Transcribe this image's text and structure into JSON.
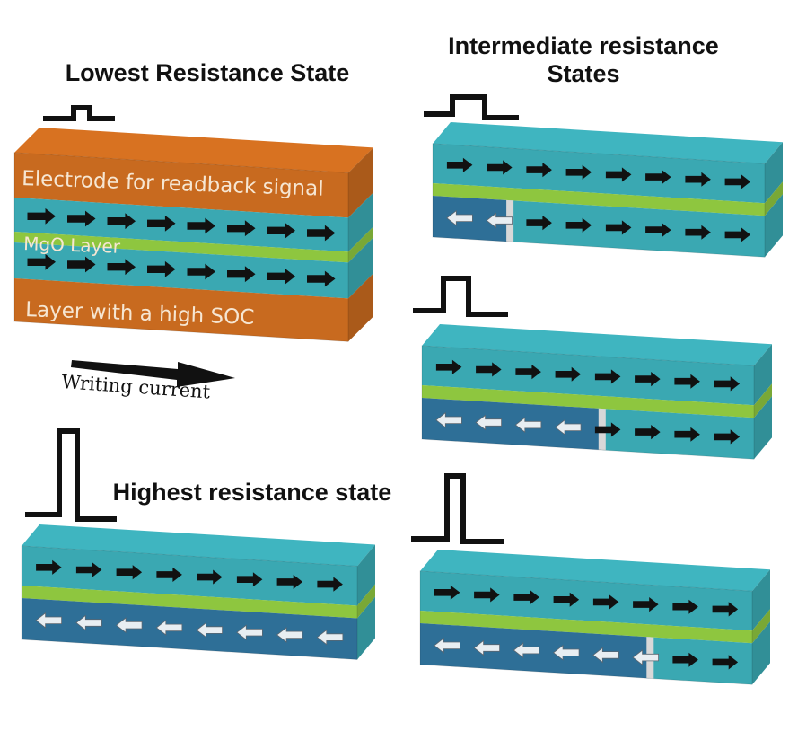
{
  "titles": {
    "lowest": "Lowest Resistance State",
    "intermediate_line1": "Intermediate resistance",
    "intermediate_line2": "States",
    "highest": "Highest resistance state"
  },
  "labels": {
    "electrode": "Electrode for readback signal",
    "mgo": "MgO Layer",
    "soc": "Layer with a high SOC",
    "writing_current": "Writing current"
  },
  "colors": {
    "orange": "#c86a1f",
    "teal": "#3aa8b2",
    "green": "#8ec63f",
    "dark_blue": "#2e6f97",
    "arrow_black": "#111111",
    "arrow_white": "#e8eef2",
    "wall_gray": "#d8d8d8"
  },
  "devices": [
    {
      "id": "lowest",
      "free_layer_reversed_fraction": 0.0
    },
    {
      "id": "intermediate-1",
      "free_layer_reversed_fraction": 0.23
    },
    {
      "id": "intermediate-2",
      "free_layer_reversed_fraction": 0.54
    },
    {
      "id": "intermediate-3",
      "free_layer_reversed_fraction": 0.69
    },
    {
      "id": "highest",
      "free_layer_reversed_fraction": 1.0
    }
  ]
}
